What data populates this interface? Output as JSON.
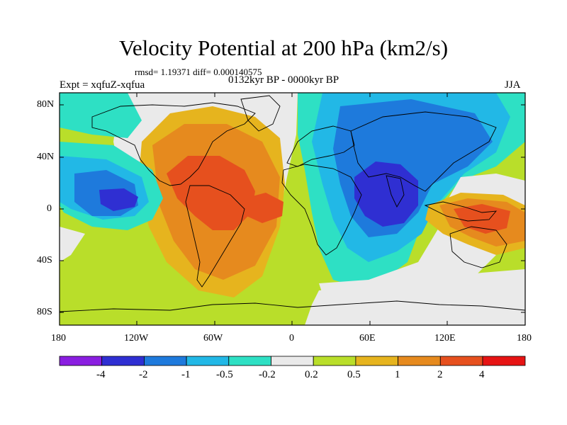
{
  "title": "Velocity Potential at 200 hPa (km2/s)",
  "stats_line": "rmsd= 1.19371 diff= 0.000140575",
  "experiment": "Expt = xqfuZ-xqfua",
  "period": "0132kyr BP - 0000kyr BP",
  "season": "JJA",
  "map": {
    "y_ticks": [
      "80N",
      "40N",
      "0",
      "40S",
      "80S"
    ],
    "x_ticks": [
      "180",
      "120W",
      "60W",
      "0",
      "60E",
      "120E",
      "180"
    ]
  },
  "colorbar": {
    "labels": [
      "-4",
      "-2",
      "-1",
      "-0.5",
      "-0.2",
      "0.2",
      "0.5",
      "1",
      "2",
      "4"
    ],
    "colors": [
      "#8a1ee0",
      "#2f2fd2",
      "#1e7adc",
      "#22b8e6",
      "#2ee0c4",
      "#eaeaea",
      "#b9de2a",
      "#e6b41e",
      "#e68a1e",
      "#e6501e",
      "#e61414"
    ]
  },
  "palette": {
    "neg_strong": "#2f2fd2",
    "neg_mid": "#1e7adc",
    "neg_weak": "#22b8e6",
    "neg_faint": "#2ee0c4",
    "near_zero": "#eaeaea",
    "pos_faint": "#b9de2a",
    "pos_weak": "#e6b41e",
    "pos_mid": "#e68a1e",
    "pos_strong": "#e6501e"
  }
}
